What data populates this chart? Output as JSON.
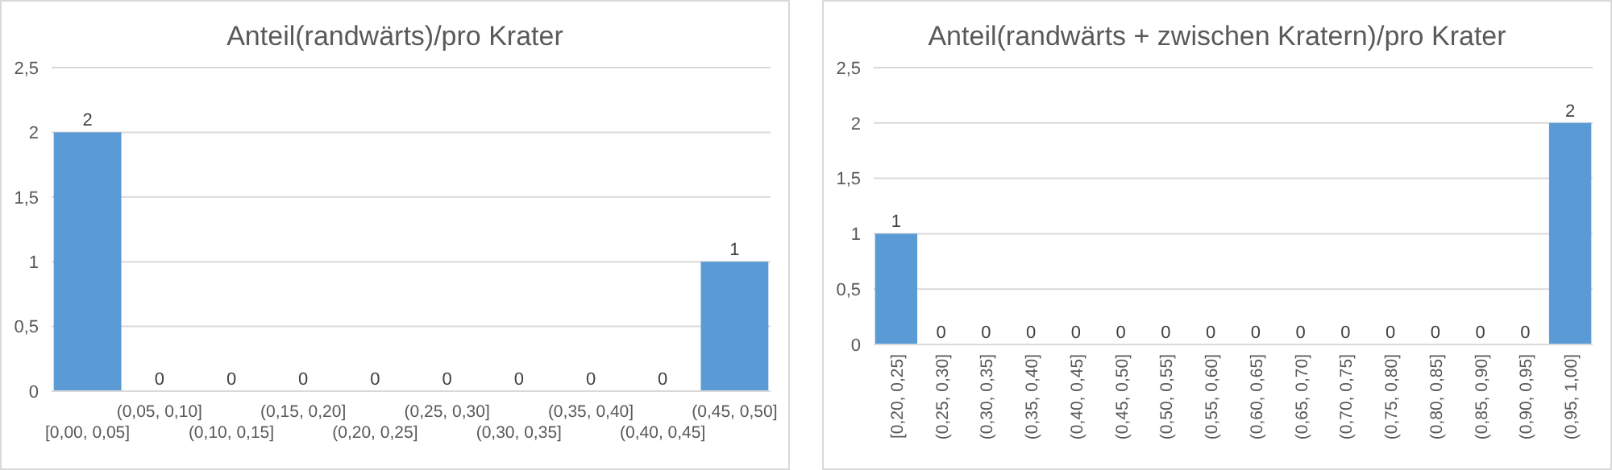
{
  "chart_data": [
    {
      "type": "bar",
      "title": "Anteil(randwärts)/pro Krater",
      "categories": [
        "[0,00, 0,05]",
        "(0,05, 0,10]",
        "(0,10, 0,15]",
        "(0,15, 0,20]",
        "(0,20, 0,25]",
        "(0,25, 0,30]",
        "(0,30, 0,35]",
        "(0,35, 0,40]",
        "(0,40, 0,45]",
        "(0,45, 0,50]"
      ],
      "values": [
        2,
        0,
        0,
        0,
        0,
        0,
        0,
        0,
        0,
        1
      ],
      "color": "#5b9bd5",
      "ylim": [
        0,
        2.5
      ],
      "yticks": [
        0,
        {
          "value": 0.5,
          "label": "0,5"
        },
        1,
        {
          "value": 1.5,
          "label": "1,5"
        },
        2,
        {
          "value": 2.5,
          "label": "2,5"
        }
      ],
      "grid": "y",
      "data_labels": true
    },
    {
      "type": "bar",
      "title": "Anteil(randwärts + zwischen Kratern)/pro Krater",
      "categories": [
        "[0,20, 0,25]",
        "(0,25, 0,30]",
        "(0,30, 0,35]",
        "(0,35, 0,40]",
        "(0,40, 0,45]",
        "(0,45, 0,50]",
        "(0,50, 0,55]",
        "(0,55, 0,60]",
        "(0,60, 0,65]",
        "(0,65, 0,70]",
        "(0,70, 0,75]",
        "(0,75, 0,80]",
        "(0,80, 0,85]",
        "(0,85, 0,90]",
        "(0,90, 0,95]",
        "(0,95, 1,00]"
      ],
      "values": [
        1,
        0,
        0,
        0,
        0,
        0,
        0,
        0,
        0,
        0,
        0,
        0,
        0,
        0,
        0,
        2
      ],
      "color": "#5b9bd5",
      "ylim": [
        0,
        2.5
      ],
      "yticks": [
        0,
        {
          "value": 0.5,
          "label": "0,5"
        },
        1,
        {
          "value": 1.5,
          "label": "1,5"
        },
        2,
        {
          "value": 2.5,
          "label": "2,5"
        }
      ],
      "grid": "y",
      "data_labels": true
    }
  ]
}
